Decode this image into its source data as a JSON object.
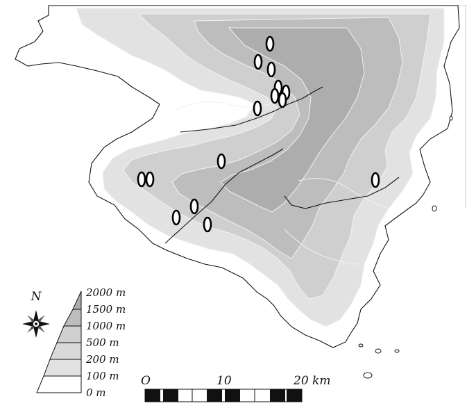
{
  "legend": {
    "north": "N",
    "elevations": [
      "2000 m",
      "1500 m",
      "1000 m",
      "500 m",
      "200 m",
      "100 m",
      "0 m"
    ]
  },
  "scale": {
    "ticks": [
      "O",
      "10",
      "20 km"
    ]
  },
  "colors": {
    "sea": "#ffffff",
    "land_low": "#ffffff",
    "band_100": "#e2e2e2",
    "band_500": "#cfcfcf",
    "band_1000": "#bdbdbd",
    "band_1500": "#adadad",
    "coast": "#111111",
    "contour": "#f2f2f2"
  },
  "icons": [
    "compass-rose-icon",
    "site-marker-icon"
  ]
}
